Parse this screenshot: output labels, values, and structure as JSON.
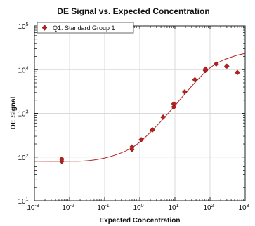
{
  "chart_data": {
    "type": "scatter",
    "title": "DE Signal vs. Expected Concentration",
    "xlabel": "Expected Concentration",
    "ylabel": "DE Signal",
    "xscale": "log",
    "yscale": "log",
    "xlim": [
      0.001,
      1000
    ],
    "ylim": [
      10,
      100000
    ],
    "x_tick_labels": [
      {
        "base": "10",
        "exp": "-3"
      },
      {
        "base": "10",
        "exp": "-2"
      },
      {
        "base": "10",
        "exp": "-1"
      },
      {
        "base": "10",
        "exp": "0"
      },
      {
        "base": "10",
        "exp": "1"
      },
      {
        "base": "10",
        "exp": "2"
      },
      {
        "base": "10",
        "exp": "3"
      }
    ],
    "y_tick_labels": [
      {
        "base": "10",
        "exp": "1"
      },
      {
        "base": "10",
        "exp": "2"
      },
      {
        "base": "10",
        "exp": "3"
      },
      {
        "base": "10",
        "exp": "4"
      },
      {
        "base": "10",
        "exp": "5"
      }
    ],
    "grid": true,
    "legend": {
      "position": "top-left",
      "entries": [
        "Q1: Standard Group 1"
      ]
    },
    "series": [
      {
        "name": "Q1: Standard Group 1",
        "marker": "diamond",
        "color": "#b22222",
        "points": [
          {
            "x": 0.006,
            "y": 80
          },
          {
            "x": 0.006,
            "y": 90
          },
          {
            "x": 0.6,
            "y": 150
          },
          {
            "x": 0.6,
            "y": 170
          },
          {
            "x": 1.1,
            "y": 250
          },
          {
            "x": 2.3,
            "y": 420
          },
          {
            "x": 4.6,
            "y": 820
          },
          {
            "x": 9.3,
            "y": 1400
          },
          {
            "x": 9.3,
            "y": 1650
          },
          {
            "x": 19,
            "y": 3100
          },
          {
            "x": 37,
            "y": 5900
          },
          {
            "x": 74,
            "y": 9600
          },
          {
            "x": 74,
            "y": 10300
          },
          {
            "x": 150,
            "y": 13500
          },
          {
            "x": 300,
            "y": 12000
          },
          {
            "x": 600,
            "y": 8600
          }
        ]
      }
    ],
    "fit_curve": {
      "color": "#b22222",
      "points": [
        {
          "x": 0.001,
          "y": 80
        },
        {
          "x": 0.01,
          "y": 80
        },
        {
          "x": 0.03,
          "y": 82
        },
        {
          "x": 0.1,
          "y": 95
        },
        {
          "x": 0.3,
          "y": 125
        },
        {
          "x": 0.6,
          "y": 165
        },
        {
          "x": 1,
          "y": 220
        },
        {
          "x": 2,
          "y": 370
        },
        {
          "x": 5,
          "y": 800
        },
        {
          "x": 10,
          "y": 1500
        },
        {
          "x": 20,
          "y": 2900
        },
        {
          "x": 50,
          "y": 6500
        },
        {
          "x": 100,
          "y": 11000
        },
        {
          "x": 200,
          "y": 15500
        },
        {
          "x": 500,
          "y": 20500
        },
        {
          "x": 1000,
          "y": 23500
        }
      ]
    }
  }
}
